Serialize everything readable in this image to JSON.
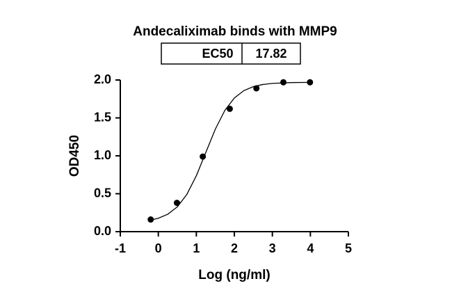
{
  "chart_data": {
    "type": "scatter",
    "title": "Andecaliximab binds with MMP9",
    "ec50_label": "EC50",
    "ec50_value": "17.82",
    "xlabel": "Log (ng/ml)",
    "ylabel": "OD450",
    "xlim": [
      -1,
      5
    ],
    "xticks": [
      -1,
      0,
      1,
      2,
      3,
      4,
      5
    ],
    "ylim": [
      0,
      2
    ],
    "yticks": [
      {
        "value": 0,
        "label": "0.0"
      },
      {
        "value": 0.5,
        "label": "0.5"
      },
      {
        "value": 1,
        "label": "1.0"
      },
      {
        "value": 1.5,
        "label": "1.5"
      },
      {
        "value": 2,
        "label": "2.0"
      }
    ],
    "series": [
      {
        "color": "#000000",
        "x": [
          -0.2,
          0.49,
          1.17,
          1.88,
          2.58,
          3.29,
          3.99
        ],
        "values": [
          0.16,
          0.38,
          0.99,
          1.62,
          1.89,
          1.97,
          1.97
        ]
      }
    ],
    "fit": {
      "color": "#000000",
      "x": [
        -0.2,
        0,
        0.25,
        0.5,
        0.75,
        1,
        1.25,
        1.5,
        1.75,
        2,
        2.25,
        2.5,
        2.75,
        3,
        3.5,
        4
      ],
      "values": [
        0.153,
        0.177,
        0.23,
        0.327,
        0.491,
        0.737,
        1.045,
        1.352,
        1.599,
        1.763,
        1.86,
        1.913,
        1.941,
        1.955,
        1.966,
        1.969
      ]
    }
  }
}
